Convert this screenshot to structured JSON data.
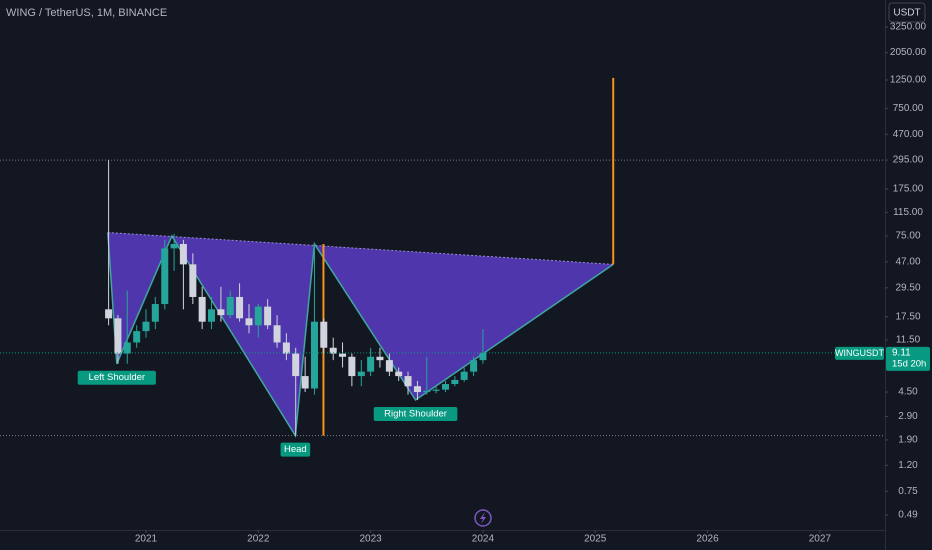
{
  "chart_data": {
    "type": "candlestick",
    "title": "WING / TetherUS, 1M, BINANCE",
    "currency": "USDT",
    "log_scale": true,
    "up_color": "#26a69a",
    "down_color": "#d1d4dc",
    "x": [
      2020.667,
      2020.75,
      2020.833,
      2020.917,
      2021,
      2021.083,
      2021.167,
      2021.25,
      2021.333,
      2021.417,
      2021.5,
      2021.583,
      2021.667,
      2021.75,
      2021.833,
      2021.917,
      2022,
      2022.083,
      2022.167,
      2022.25,
      2022.333,
      2022.417,
      2022.5,
      2022.583,
      2022.667,
      2022.75,
      2022.833,
      2022.917,
      2023,
      2023.083,
      2023.167,
      2023.25,
      2023.333,
      2023.417,
      2023.5,
      2023.583,
      2023.667,
      2023.75,
      2023.833,
      2023.917,
      2024
    ],
    "open": [
      20,
      17,
      9,
      11,
      13.5,
      16,
      22,
      60,
      65,
      45,
      25,
      16,
      20,
      18,
      25,
      17,
      15,
      21,
      15,
      11,
      9,
      6,
      4.8,
      16,
      10,
      9,
      8.5,
      6,
      6.5,
      8.5,
      8,
      6.5,
      6,
      5,
      4.5,
      4.6,
      4.7,
      5.2,
      5.6,
      6.5,
      8
    ],
    "high": [
      295,
      18,
      28,
      15,
      20,
      25,
      70,
      78,
      70,
      55,
      30,
      25,
      30,
      28,
      32,
      22,
      22,
      24,
      18,
      13,
      10,
      8.5,
      65,
      17,
      12,
      11,
      9,
      8,
      10,
      10,
      9,
      7,
      6.5,
      5.5,
      8.5,
      5,
      5.5,
      6,
      7,
      8.5,
      14
    ],
    "low": [
      15,
      7.5,
      7.5,
      10,
      12,
      14,
      20,
      40,
      20,
      22,
      14,
      14,
      16,
      17,
      16,
      13,
      12,
      14,
      10,
      8,
      2.05,
      4.5,
      4.3,
      9,
      8,
      7,
      5,
      5,
      6,
      7,
      6,
      5.5,
      4.3,
      3.9,
      4.3,
      4.4,
      4.5,
      5,
      5.4,
      6,
      7.5
    ],
    "close": [
      17,
      9,
      11,
      13.5,
      16,
      22,
      60,
      65,
      45,
      25,
      16,
      20,
      18,
      25,
      17,
      15,
      21,
      15,
      11,
      9,
      6,
      4.8,
      16,
      10,
      9,
      8.5,
      6,
      6.5,
      8.5,
      8,
      6.5,
      6,
      5,
      4.5,
      4.6,
      4.7,
      5.2,
      5.6,
      6.5,
      8,
      9.11
    ],
    "xlim": [
      2019.7,
      2027.58
    ],
    "xticks": [
      2021,
      2022,
      2023,
      2024,
      2025,
      2026,
      2027
    ],
    "ylim": [
      0.374,
      5290
    ],
    "yticks": [
      {
        "value": 3250,
        "label": "3250.00"
      },
      {
        "value": 2050,
        "label": "2050.00"
      },
      {
        "value": 1250,
        "label": "1250.00"
      },
      {
        "value": 750,
        "label": "750.00"
      },
      {
        "value": 470,
        "label": "470.00"
      },
      {
        "value": 295,
        "label": "295.00"
      },
      {
        "value": 175,
        "label": "175.00"
      },
      {
        "value": 115,
        "label": "115.00"
      },
      {
        "value": 75,
        "label": "75.00"
      },
      {
        "value": 47,
        "label": "47.00"
      },
      {
        "value": 29.5,
        "label": "29.50"
      },
      {
        "value": 17.5,
        "label": "17.50"
      },
      {
        "value": 11.5,
        "label": "11.50"
      },
      {
        "value": 4.5,
        "label": "4.50"
      },
      {
        "value": 2.9,
        "label": "2.90"
      },
      {
        "value": 1.9,
        "label": "1.90"
      },
      {
        "value": 1.2,
        "label": "1.20"
      },
      0.75,
      0.49
    ],
    "last_price": {
      "symbol": "WINGUSDT",
      "value": 9.11,
      "countdown": "15d 20h",
      "color": "#089981"
    },
    "horizontal_lines": [
      295,
      2.05
    ],
    "pattern": {
      "fill": "#5b3cc4",
      "line_color": "#3fa7a0",
      "label_color": "#089981",
      "points": [
        {
          "x": 2020.66,
          "y": 80
        },
        {
          "x": 2020.74,
          "y": 7.5,
          "label": "Left Shoulder"
        },
        {
          "x": 2021.23,
          "y": 75
        },
        {
          "x": 2022.33,
          "y": 2.05,
          "label": "Head"
        },
        {
          "x": 2022.5,
          "y": 65
        },
        {
          "x": 2023.4,
          "y": 3.9,
          "label": "Right Shoulder"
        },
        {
          "x": 2025.16,
          "y": 45
        }
      ]
    },
    "target_lines": [
      {
        "x": 2022.58,
        "from": 65,
        "to": 2.05,
        "color": "#f7931a"
      },
      {
        "x": 2025.16,
        "from": 45,
        "to": 1300,
        "color": "#f7931a"
      }
    ]
  }
}
